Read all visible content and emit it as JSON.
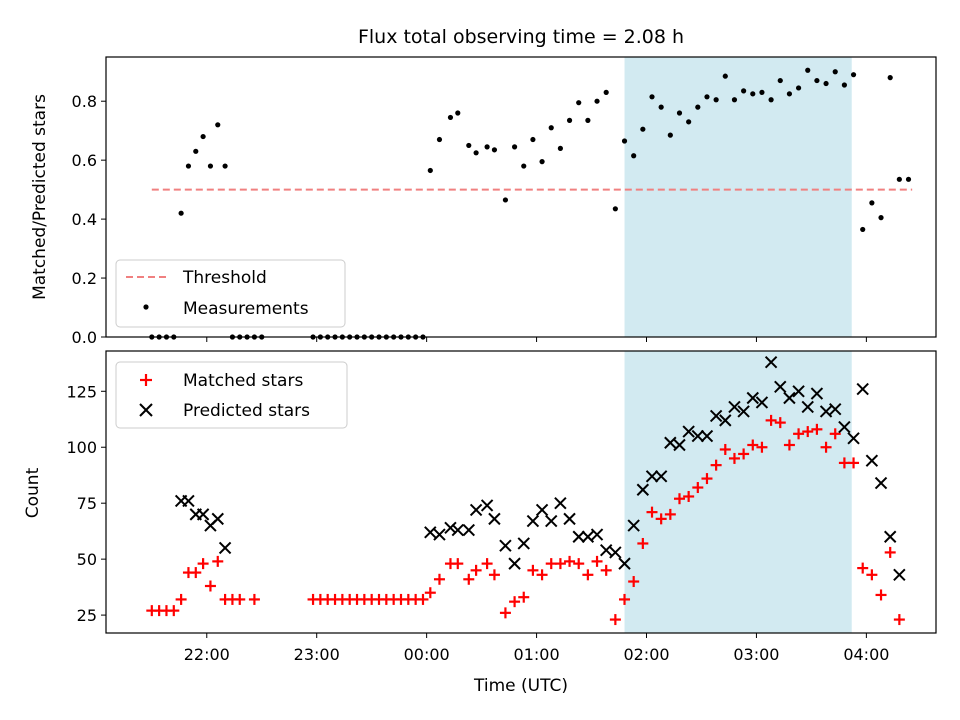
{
  "chart_data": [
    {
      "type": "scatter",
      "title": "Flux total observing time = 2.08 h",
      "ylabel": "Matched/Predicted stars",
      "ylim": [
        0,
        0.95
      ],
      "yticks": [
        "0.0",
        "0.2",
        "0.4",
        "0.6",
        "0.8"
      ],
      "ytick_values": [
        0,
        0.2,
        0.4,
        0.6,
        0.8
      ],
      "legend_position": "lower-left",
      "threshold": {
        "name": "Threshold",
        "value": 0.5,
        "x_range": [
          "21:30",
          "04:25"
        ],
        "color": "#f08080"
      },
      "shaded_window": {
        "from": "01:48",
        "to": "03:52",
        "color": "#add8e6"
      },
      "series": [
        {
          "name": "Measurements",
          "color": "#000000",
          "x": [
            "21:30",
            "21:34",
            "21:38",
            "21:42",
            "21:46",
            "21:50",
            "21:54",
            "21:58",
            "22:02",
            "22:06",
            "22:10",
            "22:14",
            "22:18",
            "22:22",
            "22:26",
            "22:30",
            "22:58",
            "23:02",
            "23:06",
            "23:10",
            "23:14",
            "23:18",
            "23:22",
            "23:26",
            "23:30",
            "23:34",
            "23:38",
            "23:42",
            "23:46",
            "23:50",
            "23:54",
            "23:58",
            "00:02",
            "00:07",
            "00:13",
            "00:17",
            "00:23",
            "00:27",
            "00:33",
            "00:37",
            "00:43",
            "00:48",
            "00:53",
            "00:58",
            "01:03",
            "01:08",
            "01:13",
            "01:18",
            "01:23",
            "01:28",
            "01:33",
            "01:38",
            "01:43",
            "01:48",
            "01:53",
            "01:58",
            "02:03",
            "02:08",
            "02:13",
            "02:18",
            "02:23",
            "02:28",
            "02:33",
            "02:38",
            "02:43",
            "02:48",
            "02:53",
            "02:58",
            "03:03",
            "03:08",
            "03:13",
            "03:18",
            "03:23",
            "03:28",
            "03:33",
            "03:38",
            "03:43",
            "03:48",
            "03:53",
            "03:58",
            "04:03",
            "04:08",
            "04:13",
            "04:18",
            "04:23"
          ],
          "y": [
            0,
            0,
            0,
            0,
            0.42,
            0.58,
            0.63,
            0.68,
            0.58,
            0.72,
            0.58,
            0,
            0,
            0,
            0,
            0,
            0,
            0,
            0,
            0,
            0,
            0,
            0,
            0,
            0,
            0,
            0,
            0,
            0,
            0,
            0,
            0,
            0.565,
            0.67,
            0.745,
            0.76,
            0.65,
            0.625,
            0.645,
            0.635,
            0.465,
            0.645,
            0.58,
            0.67,
            0.595,
            0.71,
            0.64,
            0.735,
            0.795,
            0.735,
            0.8,
            0.83,
            0.435,
            0.665,
            0.615,
            0.705,
            0.815,
            0.78,
            0.685,
            0.76,
            0.73,
            0.78,
            0.815,
            0.805,
            0.885,
            0.805,
            0.835,
            0.825,
            0.83,
            0.805,
            0.87,
            0.825,
            0.845,
            0.905,
            0.87,
            0.86,
            0.9,
            0.855,
            0.89,
            0.365,
            0.455,
            0.405,
            0.88,
            0.535,
            0.535
          ]
        }
      ]
    },
    {
      "type": "scatter",
      "xlabel": "Time (UTC)",
      "ylabel": "Count",
      "ylim": [
        17,
        143
      ],
      "yticks": [
        "25",
        "50",
        "75",
        "100",
        "125"
      ],
      "ytick_values": [
        25,
        50,
        75,
        100,
        125
      ],
      "xticks": [
        "22:00",
        "23:00",
        "00:00",
        "01:00",
        "02:00",
        "03:00",
        "04:00"
      ],
      "xtick_values": [
        "22:00",
        "23:00",
        "00:00",
        "01:00",
        "02:00",
        "03:00",
        "04:00"
      ],
      "xlim": [
        "21:05",
        "04:38"
      ],
      "legend_position": "upper-left",
      "shaded_window": {
        "from": "01:48",
        "to": "03:52",
        "color": "#add8e6"
      },
      "series": [
        {
          "name": "Matched stars",
          "marker": "plus",
          "color": "#ff0000",
          "x": [
            "21:30",
            "21:34",
            "21:38",
            "21:42",
            "21:46",
            "21:50",
            "21:54",
            "21:58",
            "22:02",
            "22:06",
            "22:10",
            "22:14",
            "22:18",
            "22:26",
            "22:58",
            "23:02",
            "23:06",
            "23:10",
            "23:14",
            "23:18",
            "23:22",
            "23:26",
            "23:30",
            "23:34",
            "23:38",
            "23:42",
            "23:46",
            "23:50",
            "23:54",
            "23:58",
            "00:02",
            "00:07",
            "00:13",
            "00:17",
            "00:23",
            "00:27",
            "00:33",
            "00:37",
            "00:43",
            "00:48",
            "00:53",
            "00:58",
            "01:03",
            "01:08",
            "01:13",
            "01:18",
            "01:23",
            "01:28",
            "01:33",
            "01:38",
            "01:43",
            "01:48",
            "01:53",
            "01:58",
            "02:03",
            "02:08",
            "02:13",
            "02:18",
            "02:23",
            "02:28",
            "02:33",
            "02:38",
            "02:43",
            "02:48",
            "02:53",
            "02:58",
            "03:03",
            "03:08",
            "03:13",
            "03:18",
            "03:23",
            "03:28",
            "03:33",
            "03:38",
            "03:43",
            "03:48",
            "03:53",
            "03:58",
            "04:03",
            "04:08",
            "04:13",
            "04:18"
          ],
          "y": [
            27,
            27,
            27,
            27,
            32,
            44,
            44,
            48,
            38,
            49,
            32,
            32,
            32,
            32,
            32,
            32,
            32,
            32,
            32,
            32,
            32,
            32,
            32,
            32,
            32,
            32,
            32,
            32,
            32,
            32,
            35,
            41,
            48,
            48,
            41,
            45,
            48,
            43,
            26,
            31,
            33,
            45,
            43,
            48,
            48,
            49,
            48,
            43,
            49,
            45,
            23,
            32,
            40,
            57,
            71,
            68,
            70,
            77,
            78,
            82,
            86,
            92,
            99,
            95,
            97,
            101,
            100,
            112,
            111,
            101,
            106,
            107,
            108,
            100,
            106,
            93,
            93,
            46,
            43,
            34,
            53,
            23
          ]
        },
        {
          "name": "Predicted stars",
          "marker": "x",
          "color": "#000000",
          "x": [
            "21:46",
            "21:50",
            "21:54",
            "21:58",
            "22:02",
            "22:06",
            "22:10",
            "00:02",
            "00:07",
            "00:13",
            "00:17",
            "00:23",
            "00:27",
            "00:33",
            "00:37",
            "00:43",
            "00:48",
            "00:53",
            "00:58",
            "01:03",
            "01:08",
            "01:13",
            "01:18",
            "01:23",
            "01:28",
            "01:33",
            "01:38",
            "01:43",
            "01:48",
            "01:53",
            "01:58",
            "02:03",
            "02:08",
            "02:13",
            "02:18",
            "02:23",
            "02:28",
            "02:33",
            "02:38",
            "02:43",
            "02:48",
            "02:53",
            "02:58",
            "03:03",
            "03:08",
            "03:13",
            "03:18",
            "03:23",
            "03:28",
            "03:33",
            "03:38",
            "03:43",
            "03:48",
            "03:53",
            "03:58",
            "04:03",
            "04:08",
            "04:13",
            "04:18"
          ],
          "y": [
            76,
            76,
            70,
            70,
            65,
            68,
            55,
            62,
            61,
            64,
            63,
            63,
            72,
            74,
            68,
            56,
            48,
            57,
            67,
            72,
            67,
            75,
            68,
            60,
            60,
            61,
            54,
            53,
            48,
            65,
            81,
            87,
            87,
            102,
            101,
            107,
            105,
            105,
            114,
            112,
            118,
            116,
            122,
            120,
            138,
            127,
            122,
            125,
            118,
            124,
            116,
            117,
            109,
            104,
            126,
            94,
            84,
            60,
            43
          ]
        }
      ]
    }
  ]
}
